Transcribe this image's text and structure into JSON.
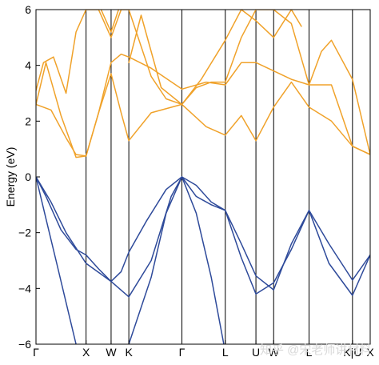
{
  "chart_data": {
    "type": "line",
    "title": "",
    "xlabel": "",
    "ylabel": "Energy (eV)",
    "ylim": [
      -6,
      6
    ],
    "yticks": [
      -6,
      -4,
      -2,
      0,
      2,
      4,
      6
    ],
    "grid": false,
    "legend": "none",
    "k_points": [
      {
        "label": "Γ",
        "x": 0.0
      },
      {
        "label": "X",
        "x": 1.0
      },
      {
        "label": "W",
        "x": 1.5
      },
      {
        "label": "K",
        "x": 1.854
      },
      {
        "label": "Γ",
        "x": 2.914
      },
      {
        "label": "L",
        "x": 3.78
      },
      {
        "label": "U",
        "x": 4.392
      },
      {
        "label": "W",
        "x": 4.746
      },
      {
        "label": "L",
        "x": 5.453
      },
      {
        "label": "K",
        "x": 6.32
      },
      {
        "label": "U",
        "x": 6.32
      },
      {
        "label": "X",
        "x": 6.674
      }
    ],
    "tick_text": [
      "Γ",
      "X",
      "W",
      "K",
      "Γ",
      "L",
      "U",
      "W",
      "L",
      "K|U",
      "X"
    ],
    "colors": {
      "valence": "#2e4a9a",
      "conduction": "#f0a22a"
    },
    "series": [
      {
        "band": "valence",
        "x": [
          0,
          0.2,
          0.5,
          0.8,
          1.0,
          1.25,
          1.5,
          1.7,
          1.854,
          2.2,
          2.6,
          2.914,
          3.2,
          3.5,
          3.78,
          4.1,
          4.392,
          4.746,
          5.1,
          5.453,
          5.85,
          6.32,
          6.674
        ],
        "y": [
          0,
          -0.7,
          -1.9,
          -2.6,
          -2.8,
          -3.3,
          -3.75,
          -3.4,
          -2.7,
          -1.6,
          -0.45,
          0,
          -0.3,
          -0.9,
          -1.2,
          -2.4,
          -3.55,
          -4.05,
          -2.4,
          -1.2,
          -2.4,
          -3.7,
          -2.8
        ]
      },
      {
        "band": "valence",
        "x": [
          0,
          0.3,
          0.6,
          1.0,
          1.5,
          1.854,
          2.3,
          2.7,
          2.914,
          3.2,
          3.5,
          3.78,
          4.1,
          4.392,
          4.746,
          5.1,
          5.453,
          5.85,
          6.32,
          6.674
        ],
        "y": [
          0,
          -0.9,
          -2.0,
          -3.1,
          -3.75,
          -4.3,
          -3.0,
          -0.7,
          0,
          -0.7,
          -1.0,
          -1.2,
          -2.9,
          -4.2,
          -3.8,
          -2.6,
          -1.2,
          -3.1,
          -4.25,
          -2.8
        ]
      },
      {
        "band": "valence",
        "x": [
          0,
          0.2,
          0.4,
          0.6,
          0.8
        ],
        "y": [
          0,
          -1.5,
          -3.0,
          -4.5,
          -6.0
        ]
      },
      {
        "band": "valence",
        "x": [
          1.854,
          2.3,
          2.6,
          2.914,
          3.2,
          3.5,
          3.75
        ],
        "y": [
          -6.0,
          -3.6,
          -1.3,
          0,
          -1.3,
          -3.6,
          -6.0
        ]
      },
      {
        "band": "conduction",
        "x": [
          0,
          0.2,
          0.5,
          0.8,
          1.0,
          1.25,
          1.5,
          1.7,
          1.854,
          2.3,
          2.914,
          3.4,
          3.78,
          4.1,
          4.392,
          4.746,
          5.1,
          5.453,
          5.9,
          6.32,
          6.674
        ],
        "y": [
          2.6,
          4.1,
          2.2,
          0.7,
          0.75,
          2.3,
          4.1,
          4.4,
          4.3,
          3.9,
          3.15,
          3.4,
          3.3,
          4.1,
          4.1,
          3.8,
          3.5,
          3.3,
          3.3,
          1.1,
          0.8
        ]
      },
      {
        "band": "conduction",
        "x": [
          0,
          0.3,
          0.6,
          0.8,
          1.0,
          1.25,
          1.5,
          1.7,
          1.854,
          2.3,
          2.914,
          3.4,
          3.78,
          4.1,
          4.392,
          4.746,
          5.1,
          5.453,
          5.9,
          6.32,
          6.674
        ],
        "y": [
          2.6,
          2.4,
          1.4,
          0.8,
          0.75,
          2.3,
          3.7,
          2.3,
          1.3,
          2.3,
          2.6,
          1.8,
          1.5,
          2.2,
          1.3,
          2.5,
          3.4,
          2.5,
          2.0,
          1.1,
          0.8
        ]
      },
      {
        "band": "conduction",
        "x": [
          0,
          0.15,
          0.35,
          0.6,
          0.8,
          1.0,
          1.25,
          1.5,
          1.7,
          1.854,
          2.3,
          2.6,
          2.914,
          3.2,
          3.5,
          3.78,
          4.1,
          4.392,
          4.746,
          5.1,
          5.453,
          5.7,
          5.9,
          6.32,
          6.674
        ],
        "y": [
          3.1,
          4.1,
          4.3,
          3.0,
          5.2,
          6.0,
          6.0,
          5.0,
          6.0,
          6.0,
          3.6,
          2.8,
          2.6,
          3.2,
          3.4,
          3.4,
          5.0,
          6.0,
          6.0,
          5.5,
          3.3,
          4.5,
          4.9,
          3.5,
          0.8
        ]
      },
      {
        "band": "conduction",
        "x": [
          1.3,
          1.5,
          1.65
        ],
        "y": [
          6.0,
          5.2,
          6.0
        ]
      },
      {
        "band": "conduction",
        "x": [
          1.854,
          2.1,
          2.5,
          2.914
        ],
        "y": [
          4.1,
          5.8,
          3.2,
          2.6
        ]
      },
      {
        "band": "conduction",
        "x": [
          2.914,
          3.3,
          3.78,
          4.1,
          4.392,
          4.746,
          5.1,
          5.3
        ],
        "y": [
          2.6,
          3.5,
          4.9,
          6.0,
          5.6,
          5.0,
          6.0,
          5.4
        ]
      }
    ]
  },
  "watermark": "知乎 @宋老师讲材料"
}
